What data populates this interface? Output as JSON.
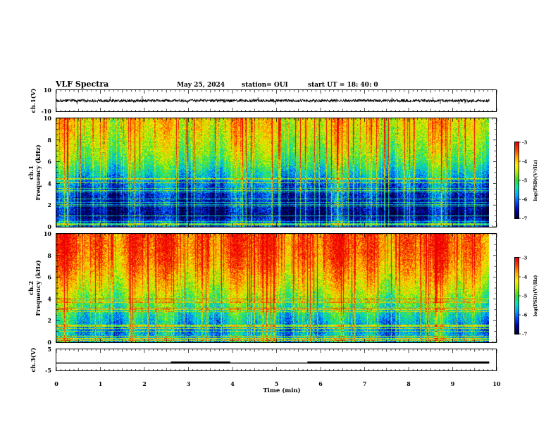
{
  "header": {
    "title": "VLF Spectra",
    "date": "May 25, 2024",
    "station": "station= OUI",
    "start": "start  UT  =   18: 40: 0"
  },
  "colors": {
    "spectrogram_palette": [
      "#000033",
      "#0000aa",
      "#0044ff",
      "#00aaff",
      "#00e8c0",
      "#33dd33",
      "#aaee00",
      "#ffee00",
      "#ffaa00",
      "#ff4400",
      "#ee0000"
    ],
    "trace": "#000000",
    "panel_background": "#ffffff"
  },
  "chart_data": [
    {
      "type": "line",
      "name": "ch1-waveform",
      "ylabel": "ch.1(V)",
      "ylim": [
        -10,
        10
      ],
      "y_ticks": [
        "10",
        "-10"
      ],
      "baseline": 0,
      "noise_amplitude": 1.3,
      "spikes": [
        {
          "t": 0.47,
          "v": -3.5
        },
        {
          "t": 1.22,
          "v": 3.8
        },
        {
          "t": 1.95,
          "v": 4.5
        },
        {
          "t": 2.98,
          "v": -2.6
        },
        {
          "t": 4.58,
          "v": 3.2
        },
        {
          "t": 4.98,
          "v": -3.6
        },
        {
          "t": 7.62,
          "v": 3.0
        },
        {
          "t": 8.55,
          "v": 3.3
        },
        {
          "t": 8.72,
          "v": -3.1
        },
        {
          "t": 9.14,
          "v": -3.3
        },
        {
          "t": 9.28,
          "v": -2.5
        }
      ]
    },
    {
      "type": "heatmap",
      "name": "ch1-spectrogram",
      "ylabel_line1": "ch.1",
      "ylabel_line2": "Frequency  (kHz)",
      "ylim": [
        0,
        10
      ],
      "y_ticks": [
        "0",
        "2",
        "4",
        "6",
        "8",
        "10"
      ],
      "colorbar": {
        "label": "log(PSD)(V²/Hz)",
        "ticks": [
          "-3",
          "-4",
          "-5",
          "-6",
          "-7"
        ],
        "range": [
          -7,
          -3
        ]
      },
      "bands_log_psd": [
        {
          "f": 0.3,
          "v": -6.2
        },
        {
          "f": 1.0,
          "v": -6.8
        },
        {
          "f": 2.0,
          "v": -6.6
        },
        {
          "f": 3.0,
          "v": -6.4
        },
        {
          "f": 4.0,
          "v": -6.0
        },
        {
          "f": 5.0,
          "v": -5.5
        },
        {
          "f": 6.0,
          "v": -5.0
        },
        {
          "f": 7.0,
          "v": -4.7
        },
        {
          "f": 8.0,
          "v": -4.5
        },
        {
          "f": 9.0,
          "v": -4.3
        },
        {
          "f": 10.0,
          "v": -4.2
        }
      ]
    },
    {
      "type": "heatmap",
      "name": "ch2-spectrogram",
      "ylabel_line1": "ch.2",
      "ylabel_line2": "Frequency  (kHz)",
      "ylim": [
        0,
        10
      ],
      "y_ticks": [
        "0",
        "2",
        "4",
        "6",
        "8",
        "10"
      ],
      "colorbar": {
        "label": "log(PSD)(V²/Hz)",
        "ticks": [
          "-3",
          "-4",
          "-5",
          "-6",
          "-7"
        ],
        "range": [
          -7,
          -3
        ]
      },
      "bands_log_psd": [
        {
          "f": 0.3,
          "v": -5.6
        },
        {
          "f": 1.0,
          "v": -5.9
        },
        {
          "f": 2.0,
          "v": -5.6
        },
        {
          "f": 3.0,
          "v": -5.2
        },
        {
          "f": 4.0,
          "v": -4.8
        },
        {
          "f": 5.0,
          "v": -4.4
        },
        {
          "f": 6.0,
          "v": -4.1
        },
        {
          "f": 7.0,
          "v": -3.8
        },
        {
          "f": 8.0,
          "v": -3.6
        },
        {
          "f": 9.0,
          "v": -3.5
        },
        {
          "f": 10.0,
          "v": -3.5
        }
      ]
    },
    {
      "type": "line",
      "name": "ch3-trace",
      "ylabel": "ch.3(V)",
      "ylim": [
        -5,
        5
      ],
      "y_ticks": [
        "5",
        "-5"
      ],
      "segments": [
        {
          "t0": 0.0,
          "t1": 2.6,
          "v": -1.5
        },
        {
          "t0": 2.6,
          "t1": 3.95,
          "v": -1.3
        },
        {
          "t0": 3.95,
          "t1": 5.7,
          "v": -1.5
        },
        {
          "t0": 5.7,
          "t1": 9.83,
          "v": -1.3
        }
      ]
    }
  ],
  "x_axis": {
    "label": "Time  (min)",
    "xlim": [
      0,
      10
    ],
    "data_end": 9.83,
    "ticks": [
      "0",
      "1",
      "2",
      "3",
      "4",
      "5",
      "6",
      "7",
      "8",
      "9",
      "10"
    ]
  }
}
